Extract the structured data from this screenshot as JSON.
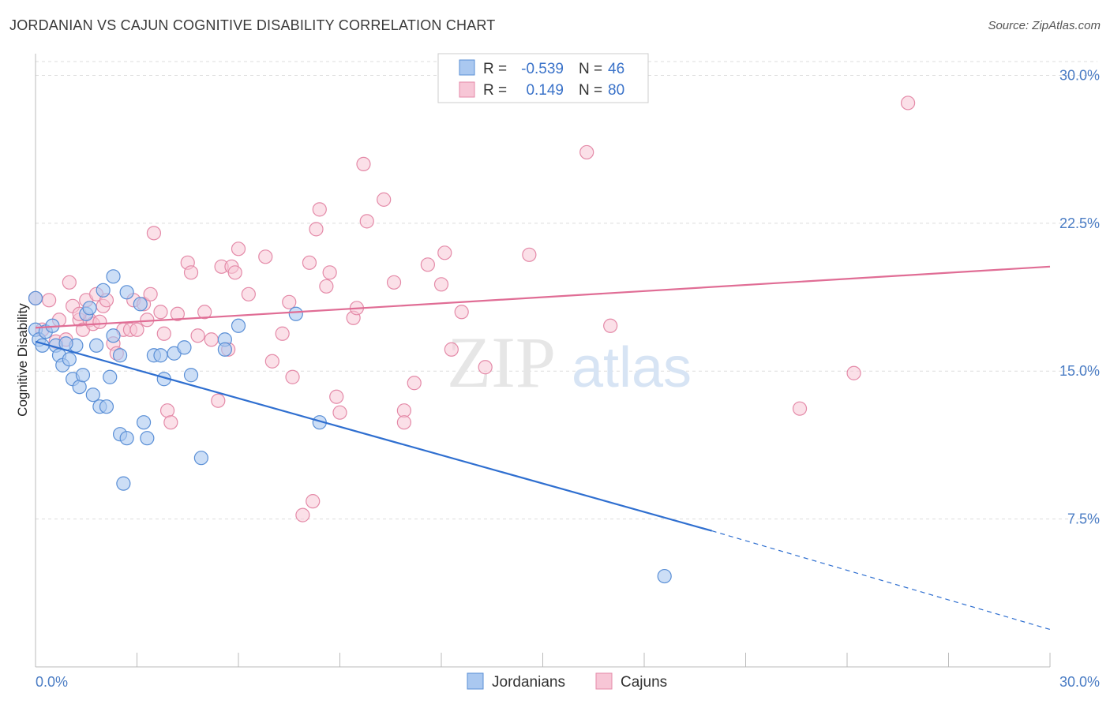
{
  "title": "JORDANIAN VS CAJUN COGNITIVE DISABILITY CORRELATION CHART",
  "source": "Source: ZipAtlas.com",
  "watermark": {
    "zip": "ZIP",
    "atlas": "atlas"
  },
  "legend_box": {
    "rows": [
      {
        "r_label": "R =",
        "r_value": "-0.539",
        "n_label": "N =",
        "n_value": "46"
      },
      {
        "r_label": "R =",
        "r_value": "0.149",
        "n_label": "N =",
        "n_value": "80"
      }
    ]
  },
  "bottom_legend": {
    "jordanians": "Jordanians",
    "cajuns": "Cajuns"
  },
  "colors": {
    "jordanian_fill": "#aac8f0",
    "jordanian_stroke": "#5a8fd6",
    "jordanian_line": "#2f6fd0",
    "cajun_fill": "#f7c6d6",
    "cajun_stroke": "#e48aa8",
    "cajun_line": "#e06d95",
    "axis_label": "#4a7cc4",
    "grid": "#dddddd"
  },
  "chart_data": {
    "type": "scatter",
    "title": "JORDANIAN VS CAJUN COGNITIVE DISABILITY CORRELATION CHART",
    "xlabel": "",
    "ylabel": "Cognitive Disability",
    "xlim": [
      0,
      30
    ],
    "ylim": [
      0,
      31.5
    ],
    "x_tick_labels": [
      "0.0%",
      "30.0%"
    ],
    "y_ticks": [
      7.5,
      15.0,
      22.5,
      30.0
    ],
    "y_tick_labels": [
      "7.5%",
      "15.0%",
      "22.5%",
      "30.0%"
    ],
    "grid": true,
    "legend_position": "top-center",
    "series": [
      {
        "name": "Jordanians",
        "R": -0.539,
        "N": 46,
        "trend": {
          "x0": 0.0,
          "y0": 16.5,
          "x1": 20.0,
          "y1": 6.9,
          "dashed_to_x": 30.0,
          "dashed_to_y": 1.9
        },
        "points": [
          [
            0.0,
            18.7
          ],
          [
            0.0,
            17.1
          ],
          [
            0.1,
            16.6
          ],
          [
            0.2,
            16.3
          ],
          [
            0.3,
            17.0
          ],
          [
            0.5,
            17.3
          ],
          [
            0.6,
            16.3
          ],
          [
            0.7,
            15.8
          ],
          [
            0.8,
            15.3
          ],
          [
            1.0,
            15.6
          ],
          [
            1.1,
            14.6
          ],
          [
            1.2,
            16.3
          ],
          [
            1.3,
            14.2
          ],
          [
            1.4,
            14.8
          ],
          [
            1.5,
            17.9
          ],
          [
            1.6,
            18.2
          ],
          [
            1.7,
            13.8
          ],
          [
            1.8,
            16.3
          ],
          [
            1.9,
            13.2
          ],
          [
            2.0,
            19.1
          ],
          [
            2.1,
            13.2
          ],
          [
            2.2,
            14.7
          ],
          [
            2.3,
            19.8
          ],
          [
            2.3,
            16.8
          ],
          [
            2.5,
            11.8
          ],
          [
            2.5,
            15.8
          ],
          [
            2.6,
            9.3
          ],
          [
            2.7,
            11.6
          ],
          [
            2.7,
            19.0
          ],
          [
            3.1,
            18.4
          ],
          [
            3.2,
            12.4
          ],
          [
            3.3,
            11.6
          ],
          [
            3.5,
            15.8
          ],
          [
            3.7,
            15.8
          ],
          [
            3.8,
            14.6
          ],
          [
            4.1,
            15.9
          ],
          [
            4.4,
            16.2
          ],
          [
            4.6,
            14.8
          ],
          [
            4.9,
            10.6
          ],
          [
            5.6,
            16.6
          ],
          [
            5.6,
            16.1
          ],
          [
            6.0,
            17.3
          ],
          [
            7.7,
            17.9
          ],
          [
            8.4,
            12.4
          ],
          [
            18.6,
            4.6
          ],
          [
            0.9,
            16.4
          ]
        ]
      },
      {
        "name": "Cajuns",
        "R": 0.149,
        "N": 80,
        "trend": {
          "x0": 0.0,
          "y0": 17.2,
          "x1": 30.0,
          "y1": 20.3
        },
        "points": [
          [
            0.0,
            18.7
          ],
          [
            0.2,
            17.1
          ],
          [
            0.4,
            18.6
          ],
          [
            0.6,
            16.5
          ],
          [
            0.7,
            17.6
          ],
          [
            0.9,
            16.6
          ],
          [
            1.0,
            19.5
          ],
          [
            1.1,
            18.3
          ],
          [
            1.3,
            17.6
          ],
          [
            1.4,
            17.1
          ],
          [
            1.5,
            18.6
          ],
          [
            1.6,
            17.6
          ],
          [
            1.7,
            17.4
          ],
          [
            1.8,
            18.9
          ],
          [
            1.9,
            17.5
          ],
          [
            2.0,
            18.3
          ],
          [
            2.1,
            18.6
          ],
          [
            2.3,
            16.4
          ],
          [
            2.4,
            15.9
          ],
          [
            2.6,
            17.1
          ],
          [
            2.8,
            17.1
          ],
          [
            2.9,
            18.6
          ],
          [
            3.0,
            17.1
          ],
          [
            3.2,
            18.4
          ],
          [
            3.3,
            17.6
          ],
          [
            3.4,
            18.9
          ],
          [
            3.5,
            22.0
          ],
          [
            3.7,
            18.0
          ],
          [
            3.8,
            16.9
          ],
          [
            3.9,
            13.0
          ],
          [
            4.0,
            12.4
          ],
          [
            4.2,
            17.9
          ],
          [
            4.5,
            20.5
          ],
          [
            4.6,
            20.0
          ],
          [
            4.8,
            16.8
          ],
          [
            5.0,
            18.0
          ],
          [
            5.2,
            16.6
          ],
          [
            5.4,
            13.5
          ],
          [
            5.5,
            20.3
          ],
          [
            5.7,
            16.1
          ],
          [
            5.8,
            20.3
          ],
          [
            5.9,
            20.0
          ],
          [
            6.0,
            21.2
          ],
          [
            6.3,
            18.9
          ],
          [
            6.8,
            20.8
          ],
          [
            7.0,
            15.5
          ],
          [
            7.3,
            16.9
          ],
          [
            7.5,
            18.5
          ],
          [
            7.6,
            14.7
          ],
          [
            7.9,
            7.7
          ],
          [
            8.1,
            20.5
          ],
          [
            8.2,
            8.4
          ],
          [
            8.3,
            22.2
          ],
          [
            8.4,
            23.2
          ],
          [
            8.6,
            19.3
          ],
          [
            8.7,
            20.0
          ],
          [
            8.9,
            13.7
          ],
          [
            9.0,
            12.9
          ],
          [
            9.4,
            17.7
          ],
          [
            9.5,
            18.2
          ],
          [
            9.7,
            25.5
          ],
          [
            9.8,
            22.6
          ],
          [
            10.3,
            23.7
          ],
          [
            10.6,
            19.5
          ],
          [
            10.9,
            13.0
          ],
          [
            10.9,
            12.4
          ],
          [
            11.2,
            14.4
          ],
          [
            11.6,
            20.4
          ],
          [
            12.0,
            19.4
          ],
          [
            12.1,
            21.0
          ],
          [
            12.3,
            16.1
          ],
          [
            12.6,
            18.0
          ],
          [
            13.3,
            15.2
          ],
          [
            14.6,
            20.9
          ],
          [
            16.3,
            26.1
          ],
          [
            17.0,
            17.3
          ],
          [
            22.6,
            13.1
          ],
          [
            24.2,
            14.9
          ],
          [
            25.8,
            28.6
          ],
          [
            1.3,
            17.9
          ]
        ]
      }
    ]
  }
}
